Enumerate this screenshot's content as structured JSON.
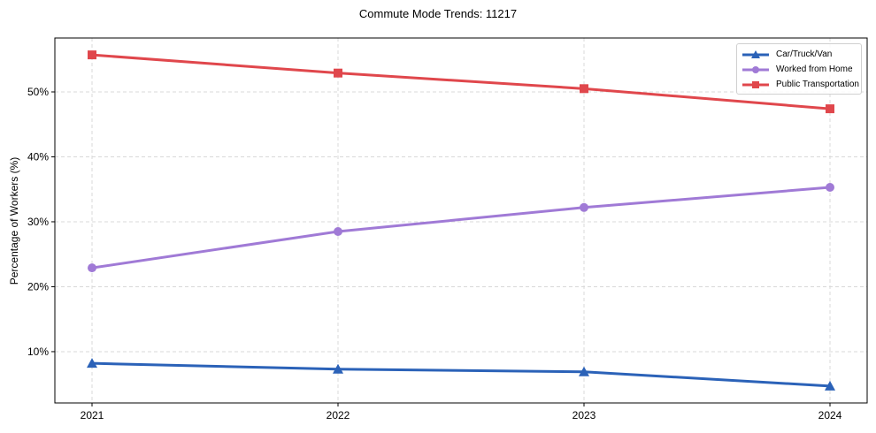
{
  "chart_data": {
    "type": "line",
    "title": "Commute Mode Trends: 11217",
    "xlabel": "",
    "ylabel": "Percentage of Workers (%)",
    "categories": [
      "2021",
      "2022",
      "2023",
      "2024"
    ],
    "series": [
      {
        "name": "Car/Truck/Van",
        "color": "#2b62b8",
        "marker": "triangle",
        "values": [
          8.2,
          7.3,
          6.9,
          4.7
        ]
      },
      {
        "name": "Worked from Home",
        "color": "#a07ad6",
        "marker": "circle",
        "values": [
          22.9,
          28.5,
          32.2,
          35.3
        ]
      },
      {
        "name": "Public Transportation",
        "color": "#e0474c",
        "marker": "square",
        "values": [
          55.7,
          52.9,
          50.5,
          47.4
        ]
      }
    ],
    "yticks": [
      10,
      20,
      30,
      40,
      50
    ],
    "ytick_labels": [
      "10%",
      "20%",
      "30%",
      "40%",
      "50%"
    ],
    "ylim": [
      2.1,
      58.3
    ],
    "grid": true,
    "grid_style": "dashed",
    "legend_position": "upper right"
  }
}
